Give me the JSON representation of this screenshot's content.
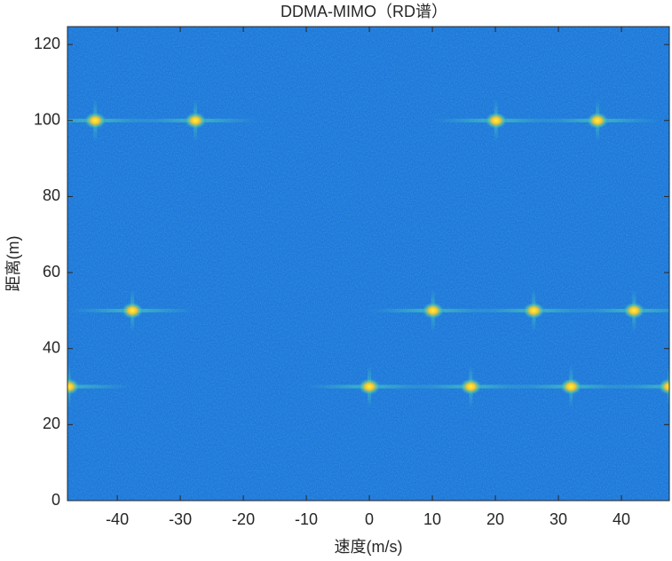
{
  "chart_data": {
    "type": "heatmap",
    "title": "DDMA-MIMO（RD谱）",
    "xlabel": "速度(m/s)",
    "ylabel": "距离(m)",
    "x": [
      -43.5,
      -27.6,
      20.1,
      36.2,
      -37.6,
      10.1,
      26.1,
      42.0,
      -47.7,
      0,
      16.1,
      32.0,
      47.6
    ],
    "y": [
      100,
      100,
      100,
      100,
      50,
      50,
      50,
      50,
      30,
      30,
      30,
      30,
      30
    ],
    "color": "#1f78d8",
    "xlim": [
      -47.9,
      47.6
    ],
    "xticks": [
      -40,
      -30,
      -20,
      -10,
      0,
      10,
      20,
      30,
      40
    ],
    "ylim": [
      0,
      124.7
    ],
    "yticks": [
      0,
      20,
      40,
      60,
      80,
      100,
      120
    ]
  }
}
